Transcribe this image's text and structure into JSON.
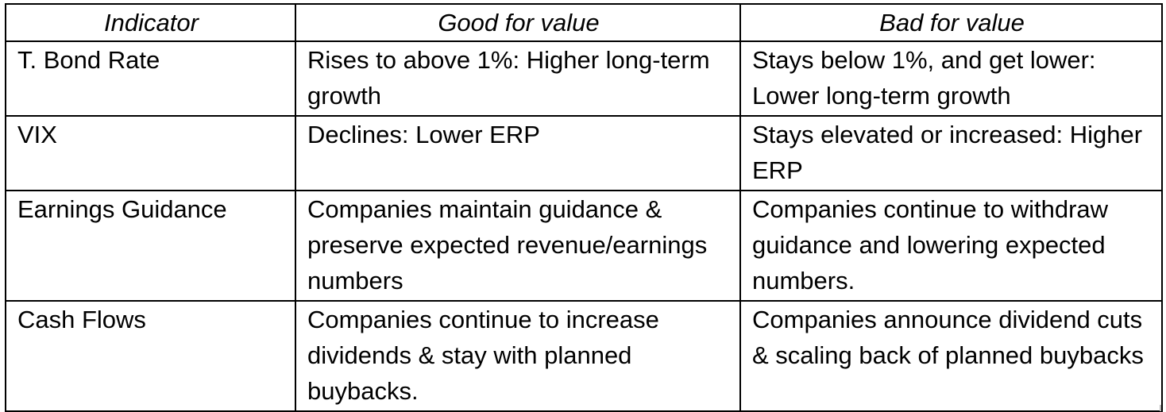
{
  "table": {
    "headers": [
      "Indicator",
      "Good for value",
      "Bad for value"
    ],
    "rows": [
      {
        "indicator": "T. Bond Rate",
        "good": "Rises to above 1%: Higher long-term growth",
        "bad": "Stays below 1%, and get lower: Lower long-term growth"
      },
      {
        "indicator": "VIX",
        "good": "Declines: Lower ERP",
        "bad": "Stays elevated or increased: Higher ERP"
      },
      {
        "indicator": "Earnings Guidance",
        "good": "Companies maintain guidance & preserve expected revenue/earnings numbers",
        "bad": "Companies continue to withdraw guidance and lowering expected numbers."
      },
      {
        "indicator": "Cash Flows",
        "good": "Companies continue to increase dividends & stay with planned buybacks.",
        "bad": "Companies announce dividend cuts & scaling back of planned buybacks"
      }
    ]
  }
}
